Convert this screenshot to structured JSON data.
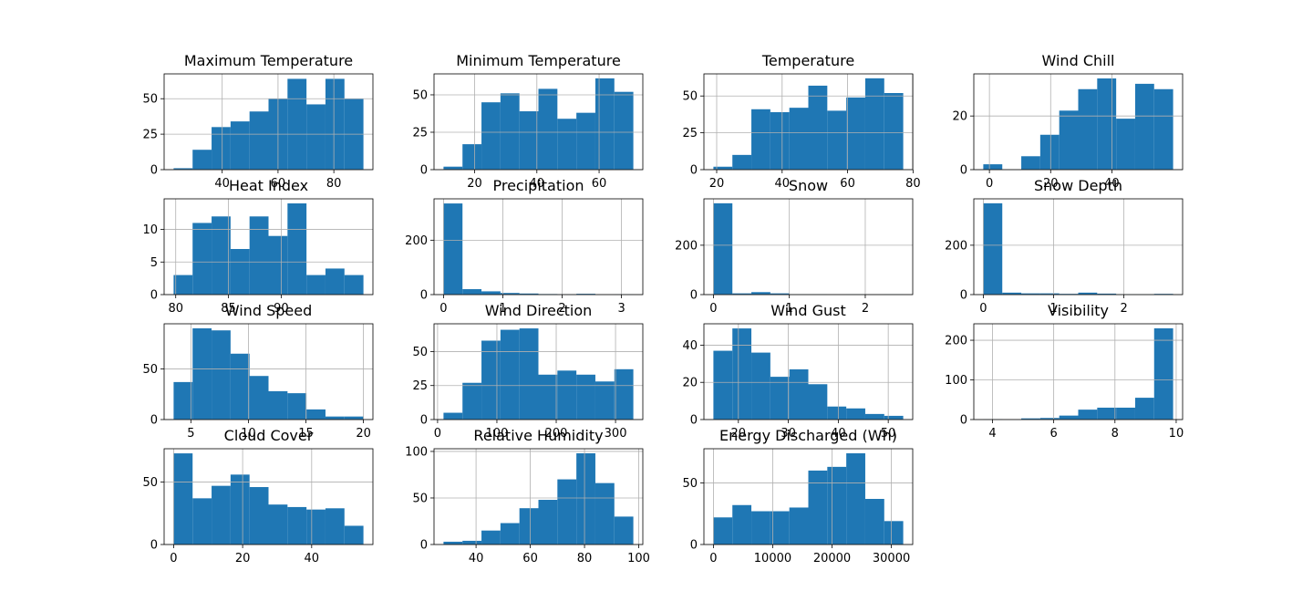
{
  "chart_data": [
    {
      "type": "bar",
      "title": "Maximum Temperature",
      "bin_edges": [
        22.6,
        29.4,
        36.2,
        43.0,
        49.8,
        56.6,
        63.4,
        70.2,
        77.0,
        83.8,
        90.6
      ],
      "values": [
        1,
        14,
        30,
        34,
        41,
        50,
        64,
        46,
        64,
        50
      ],
      "xticks": [
        40,
        60,
        80
      ],
      "ylim": [
        0,
        67.5
      ],
      "yticks": [
        0,
        25,
        50
      ],
      "grid": true
    },
    {
      "type": "bar",
      "title": "Minimum Temperature",
      "bin_edges": [
        10.0,
        16.1,
        22.2,
        28.3,
        34.4,
        40.5,
        46.6,
        52.7,
        58.8,
        64.9,
        71.0
      ],
      "values": [
        2,
        17,
        45,
        51,
        39,
        54,
        34,
        38,
        61,
        52
      ],
      "xticks": [
        20,
        40,
        60
      ],
      "ylim": [
        0,
        64.0
      ],
      "yticks": [
        0,
        25,
        50
      ],
      "grid": true
    },
    {
      "type": "bar",
      "title": "Temperature",
      "bin_edges": [
        19.0,
        24.8,
        30.6,
        36.4,
        42.2,
        48.0,
        53.8,
        59.6,
        65.4,
        71.2,
        77.0
      ],
      "values": [
        2,
        10,
        41,
        39,
        42,
        57,
        40,
        49,
        62,
        52
      ],
      "xticks": [
        20,
        40,
        60,
        80
      ],
      "ylim": [
        0,
        65.0
      ],
      "yticks": [
        0,
        25,
        50
      ],
      "grid": true
    },
    {
      "type": "bar",
      "title": "Wind Chill",
      "bin_edges": [
        -2.0,
        4.2,
        10.4,
        16.6,
        22.8,
        29.0,
        35.2,
        41.4,
        47.6,
        53.8,
        60.0
      ],
      "values": [
        2,
        0,
        5,
        13,
        22,
        30,
        34,
        19,
        32,
        30
      ],
      "xticks": [
        0,
        20,
        40
      ],
      "ylim": [
        0,
        35.7
      ],
      "yticks": [
        0,
        20
      ],
      "grid": true
    },
    {
      "type": "bar",
      "title": "Heat Index",
      "bin_edges": [
        79.8,
        81.6,
        83.4,
        85.2,
        87.0,
        88.8,
        90.6,
        92.4,
        94.2,
        96.0,
        97.8
      ],
      "values": [
        3,
        11,
        12,
        7,
        12,
        9,
        14,
        3,
        4,
        3
      ],
      "xticks": [
        80,
        85,
        90
      ],
      "ylim": [
        0,
        14.7
      ],
      "yticks": [
        0,
        5,
        10
      ],
      "grid": true
    },
    {
      "type": "bar",
      "title": "Precipitation",
      "bin_edges": [
        0.0,
        0.32,
        0.64,
        0.96,
        1.28,
        1.6,
        1.92,
        2.24,
        2.56,
        2.88,
        3.2
      ],
      "values": [
        335,
        20,
        12,
        6,
        4,
        2,
        1,
        3,
        0,
        1
      ],
      "xticks": [
        0,
        1,
        2,
        3
      ],
      "ylim": [
        0,
        352
      ],
      "yticks": [
        0,
        200
      ],
      "grid": true
    },
    {
      "type": "bar",
      "title": "Snow",
      "bin_edges": [
        0.0,
        0.25,
        0.5,
        0.75,
        1.0,
        1.25,
        1.5,
        1.75,
        2.0,
        2.25,
        2.5
      ],
      "values": [
        370,
        5,
        10,
        5,
        1,
        1,
        0,
        1,
        0,
        1
      ],
      "xticks": [
        0,
        1,
        2
      ],
      "ylim": [
        0,
        388
      ],
      "yticks": [
        0,
        200
      ],
      "grid": true
    },
    {
      "type": "bar",
      "title": "Snow Depth",
      "bin_edges": [
        0.0,
        0.27,
        0.54,
        0.81,
        1.08,
        1.35,
        1.62,
        1.89,
        2.16,
        2.43,
        2.7
      ],
      "values": [
        370,
        8,
        5,
        5,
        3,
        8,
        4,
        1,
        1,
        3
      ],
      "xticks": [
        0,
        1,
        2
      ],
      "ylim": [
        0,
        388
      ],
      "yticks": [
        0,
        200
      ],
      "grid": true
    },
    {
      "type": "bar",
      "title": "Wind Speed",
      "bin_edges": [
        3.5,
        5.15,
        6.8,
        8.45,
        10.1,
        11.75,
        13.4,
        15.05,
        16.7,
        18.35,
        20.0
      ],
      "values": [
        37,
        90,
        88,
        65,
        43,
        28,
        26,
        10,
        3,
        3
      ],
      "xticks": [
        5,
        10,
        15,
        20
      ],
      "ylim": [
        0,
        94.5
      ],
      "yticks": [
        0,
        50
      ],
      "grid": true
    },
    {
      "type": "bar",
      "title": "Wind Direction",
      "bin_edges": [
        10,
        42,
        74,
        106,
        138,
        170,
        202,
        234,
        266,
        298,
        330
      ],
      "values": [
        5,
        27,
        58,
        66,
        67,
        33,
        36,
        33,
        28,
        37
      ],
      "xticks": [
        0,
        100,
        200,
        300
      ],
      "ylim": [
        0,
        70.4
      ],
      "yticks": [
        0,
        25,
        50
      ],
      "grid": true
    },
    {
      "type": "bar",
      "title": "Wind Gust",
      "bin_edges": [
        15.0,
        18.8,
        22.6,
        26.4,
        30.2,
        34.0,
        37.8,
        41.6,
        45.4,
        49.2,
        53.0
      ],
      "values": [
        37,
        49,
        36,
        23,
        27,
        19,
        7,
        6,
        3,
        2
      ],
      "xticks": [
        20,
        30,
        40,
        50
      ],
      "ylim": [
        0,
        51.5
      ],
      "yticks": [
        0,
        20,
        40
      ],
      "grid": true
    },
    {
      "type": "bar",
      "title": "Visibility",
      "bin_edges": [
        3.7,
        4.32,
        4.94,
        5.56,
        6.18,
        6.8,
        7.42,
        8.04,
        8.66,
        9.28,
        9.9
      ],
      "values": [
        1,
        0,
        3,
        4,
        10,
        25,
        30,
        30,
        55,
        230
      ],
      "xticks": [
        4,
        6,
        8,
        10
      ],
      "ylim": [
        0,
        241.5
      ],
      "yticks": [
        0,
        100,
        200
      ],
      "grid": true
    },
    {
      "type": "bar",
      "title": "Cloud Cover",
      "bin_edges": [
        0.0,
        5.5,
        11.0,
        16.5,
        22.0,
        27.5,
        33.0,
        38.5,
        44.0,
        49.5,
        55.0
      ],
      "values": [
        73,
        37,
        47,
        56,
        46,
        32,
        30,
        28,
        29,
        15
      ],
      "xticks": [
        0,
        20,
        40
      ],
      "ylim": [
        0,
        76.7
      ],
      "yticks": [
        0,
        50
      ],
      "grid": true
    },
    {
      "type": "bar",
      "title": "Relative Humidity",
      "bin_edges": [
        28,
        35,
        42,
        49,
        56,
        63,
        70,
        77,
        84,
        91,
        98
      ],
      "values": [
        3,
        4,
        15,
        23,
        39,
        48,
        70,
        98,
        66,
        30
      ],
      "xticks": [
        40,
        60,
        80,
        100
      ],
      "ylim": [
        0,
        102.9
      ],
      "yticks": [
        0,
        50,
        100
      ],
      "grid": true
    },
    {
      "type": "bar",
      "title": "Energy Discharged (Wh)",
      "bin_edges": [
        0,
        3200,
        6400,
        9600,
        12800,
        16000,
        19200,
        22400,
        25600,
        28800,
        32000
      ],
      "values": [
        22,
        32,
        27,
        27,
        30,
        60,
        63,
        74,
        37,
        19
      ],
      "xticks": [
        0,
        10000,
        20000,
        30000
      ],
      "ylim": [
        0,
        77.7
      ],
      "yticks": [
        0,
        50
      ],
      "grid": true
    }
  ],
  "colors": {
    "bar": "#1f77b4",
    "grid": "#b0b0b0",
    "axes": "#000000"
  }
}
